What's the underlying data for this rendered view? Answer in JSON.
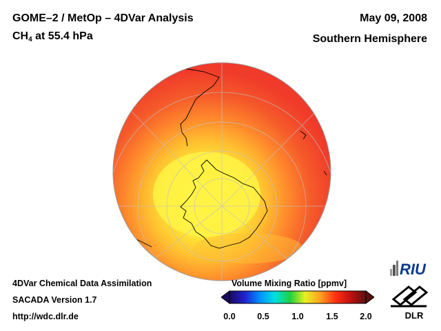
{
  "header": {
    "title_line1": "GOME–2 / MetOp – 4DVar Analysis",
    "species_prefix": "CH",
    "species_sub": "4",
    "species_suffix": " at 55.4 hPa",
    "date": "May 09, 2008",
    "region": "Southern Hemisphere"
  },
  "footer": {
    "line1": "4DVar Chemical Data Assimilation",
    "line2": "SACADA Version 1.7",
    "line3": "http://wdc.dlr.de"
  },
  "colorbar": {
    "title": "Volume Mixing Ratio [ppmv]",
    "ticks": [
      "0.0",
      "0.5",
      "1.0",
      "1.5",
      "2.0"
    ],
    "stops": [
      "#1a0a5e",
      "#2020d0",
      "#0090ff",
      "#00e0e0",
      "#20d040",
      "#e8f020",
      "#ffa020",
      "#ff3010",
      "#c01010",
      "#5a1010"
    ]
  },
  "map": {
    "projection": "orthographic",
    "center": "South Pole",
    "field_colors": {
      "high": "#f03a2a",
      "mid": "#ffb030",
      "low": "#fff040"
    }
  },
  "logos": {
    "riu": "RIU",
    "dlr": "DLR"
  }
}
